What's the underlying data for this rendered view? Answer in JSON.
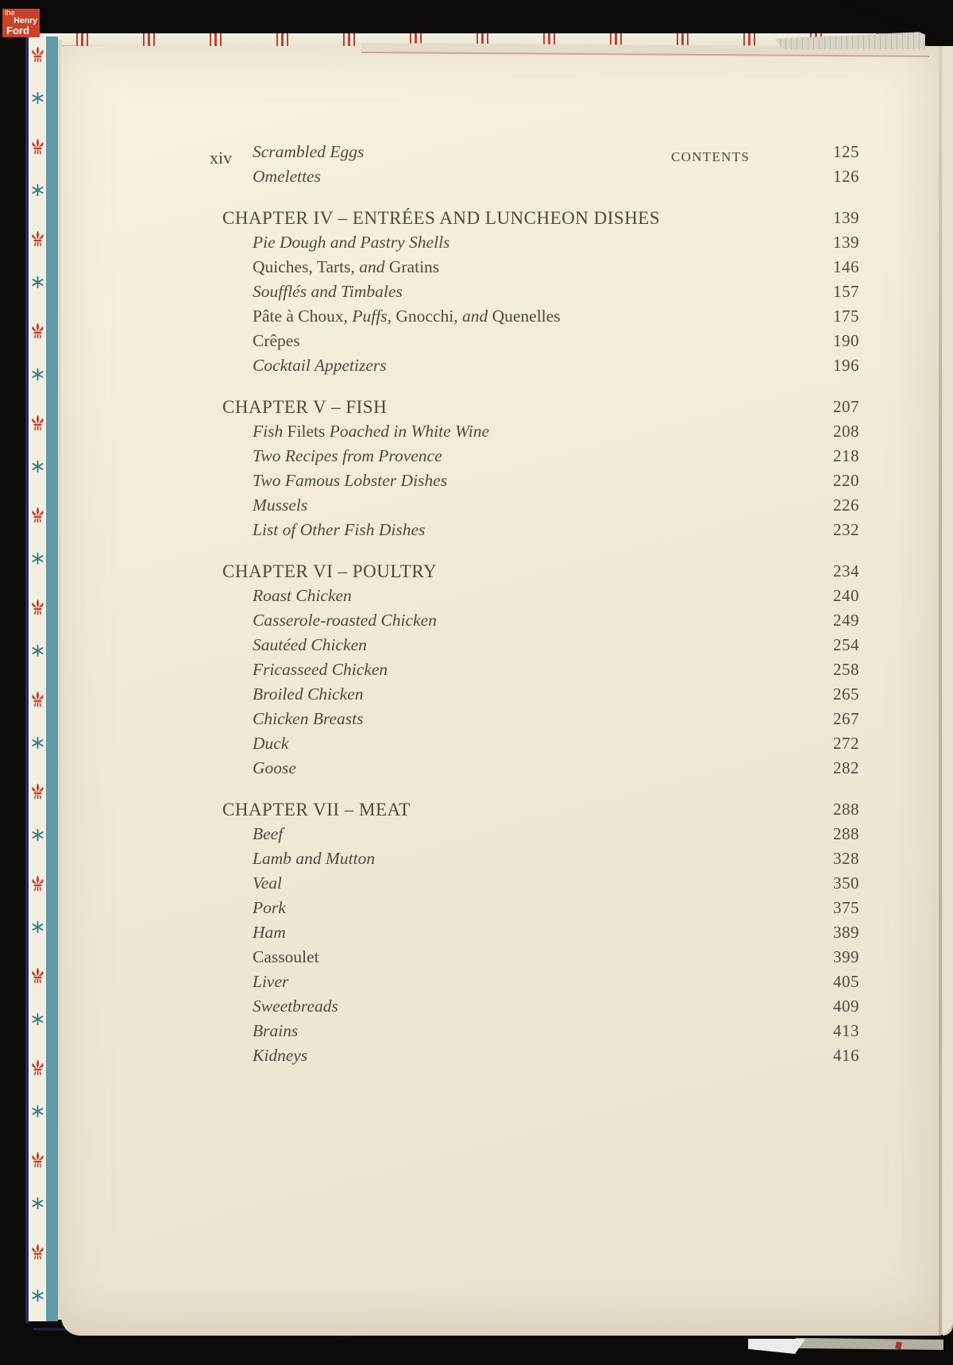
{
  "logo": {
    "the": "the",
    "henry": "Henry",
    "ford": "Ford"
  },
  "page": {
    "folio": "xiv",
    "running_head": "CONTENTS"
  },
  "toc": {
    "rows": [
      {
        "type": "item",
        "gap": false,
        "segments": [
          {
            "t": "Scrambled Eggs",
            "s": "i"
          }
        ],
        "page": "125"
      },
      {
        "type": "item",
        "gap": false,
        "segments": [
          {
            "t": "Omelettes",
            "s": "i"
          }
        ],
        "page": "126"
      },
      {
        "type": "chapter",
        "gap": true,
        "segments": [
          {
            "t": "CHAPTER IV – ENTRÉES AND LUNCHEON DISHES",
            "s": "r"
          }
        ],
        "page": "139"
      },
      {
        "type": "item",
        "gap": false,
        "segments": [
          {
            "t": "Pie Dough and Pastry Shells",
            "s": "i"
          }
        ],
        "page": "139"
      },
      {
        "type": "item",
        "gap": false,
        "segments": [
          {
            "t": "Quiches, Tarts, ",
            "s": "r"
          },
          {
            "t": "and",
            "s": "i"
          },
          {
            "t": " Gratins",
            "s": "r"
          }
        ],
        "page": "146"
      },
      {
        "type": "item",
        "gap": false,
        "segments": [
          {
            "t": "Soufflés and Timbales",
            "s": "i"
          }
        ],
        "page": "157"
      },
      {
        "type": "item",
        "gap": false,
        "segments": [
          {
            "t": "Pâte à Choux, ",
            "s": "r"
          },
          {
            "t": "Puffs,",
            "s": "i"
          },
          {
            "t": " Gnocchi, ",
            "s": "r"
          },
          {
            "t": "and",
            "s": "i"
          },
          {
            "t": " Quenelles",
            "s": "r"
          }
        ],
        "page": "175"
      },
      {
        "type": "item",
        "gap": false,
        "segments": [
          {
            "t": "Crêpes",
            "s": "r"
          }
        ],
        "page": "190"
      },
      {
        "type": "item",
        "gap": false,
        "segments": [
          {
            "t": "Cocktail Appetizers",
            "s": "i"
          }
        ],
        "page": "196"
      },
      {
        "type": "chapter",
        "gap": true,
        "segments": [
          {
            "t": "CHAPTER V – FISH",
            "s": "r"
          }
        ],
        "page": "207"
      },
      {
        "type": "item",
        "gap": false,
        "segments": [
          {
            "t": "Fish ",
            "s": "i"
          },
          {
            "t": "Filets ",
            "s": "r"
          },
          {
            "t": "Poached in White Wine",
            "s": "i"
          }
        ],
        "page": "208"
      },
      {
        "type": "item",
        "gap": false,
        "segments": [
          {
            "t": "Two Recipes from Provence",
            "s": "i"
          }
        ],
        "page": "218"
      },
      {
        "type": "item",
        "gap": false,
        "segments": [
          {
            "t": "Two Famous Lobster Dishes",
            "s": "i"
          }
        ],
        "page": "220"
      },
      {
        "type": "item",
        "gap": false,
        "segments": [
          {
            "t": "Mussels",
            "s": "i"
          }
        ],
        "page": "226"
      },
      {
        "type": "item",
        "gap": false,
        "segments": [
          {
            "t": "List of Other Fish Dishes",
            "s": "i"
          }
        ],
        "page": "232"
      },
      {
        "type": "chapter",
        "gap": true,
        "segments": [
          {
            "t": "CHAPTER VI – POULTRY",
            "s": "r"
          }
        ],
        "page": "234"
      },
      {
        "type": "item",
        "gap": false,
        "segments": [
          {
            "t": "Roast Chicken",
            "s": "i"
          }
        ],
        "page": "240"
      },
      {
        "type": "item",
        "gap": false,
        "segments": [
          {
            "t": "Casserole-roasted Chicken",
            "s": "i"
          }
        ],
        "page": "249"
      },
      {
        "type": "item",
        "gap": false,
        "segments": [
          {
            "t": "Sautéed Chicken",
            "s": "i"
          }
        ],
        "page": "254"
      },
      {
        "type": "item",
        "gap": false,
        "segments": [
          {
            "t": "Fricasseed Chicken",
            "s": "i"
          }
        ],
        "page": "258"
      },
      {
        "type": "item",
        "gap": false,
        "segments": [
          {
            "t": "Broiled Chicken",
            "s": "i"
          }
        ],
        "page": "265"
      },
      {
        "type": "item",
        "gap": false,
        "segments": [
          {
            "t": "Chicken Breasts",
            "s": "i"
          }
        ],
        "page": "267"
      },
      {
        "type": "item",
        "gap": false,
        "segments": [
          {
            "t": "Duck",
            "s": "i"
          }
        ],
        "page": "272"
      },
      {
        "type": "item",
        "gap": false,
        "segments": [
          {
            "t": "Goose",
            "s": "i"
          }
        ],
        "page": "282"
      },
      {
        "type": "chapter",
        "gap": true,
        "segments": [
          {
            "t": "CHAPTER VII – MEAT",
            "s": "r"
          }
        ],
        "page": "288"
      },
      {
        "type": "item",
        "gap": false,
        "segments": [
          {
            "t": "Beef",
            "s": "i"
          }
        ],
        "page": "288"
      },
      {
        "type": "item",
        "gap": false,
        "segments": [
          {
            "t": "Lamb and Mutton",
            "s": "i"
          }
        ],
        "page": "328"
      },
      {
        "type": "item",
        "gap": false,
        "segments": [
          {
            "t": "Veal",
            "s": "i"
          }
        ],
        "page": "350"
      },
      {
        "type": "item",
        "gap": false,
        "segments": [
          {
            "t": "Pork",
            "s": "i"
          }
        ],
        "page": "375"
      },
      {
        "type": "item",
        "gap": false,
        "segments": [
          {
            "t": "Ham",
            "s": "i"
          }
        ],
        "page": "389"
      },
      {
        "type": "item",
        "gap": false,
        "segments": [
          {
            "t": "Cassoulet",
            "s": "r"
          }
        ],
        "page": "399"
      },
      {
        "type": "item",
        "gap": false,
        "segments": [
          {
            "t": "Liver",
            "s": "i"
          }
        ],
        "page": "405"
      },
      {
        "type": "item",
        "gap": false,
        "segments": [
          {
            "t": "Sweetbreads",
            "s": "i"
          }
        ],
        "page": "409"
      },
      {
        "type": "item",
        "gap": false,
        "segments": [
          {
            "t": "Brains",
            "s": "i"
          }
        ],
        "page": "413"
      },
      {
        "type": "item",
        "gap": false,
        "segments": [
          {
            "t": "Kidneys",
            "s": "i"
          }
        ],
        "page": "416"
      }
    ]
  },
  "colors": {
    "background_black": "#0b0a08",
    "page_highlight": "#f7f1e0",
    "page_mid": "#f0e9d7",
    "page_shadow": "#e9e2cf",
    "ink": "#4a4a41",
    "teal_stripe": "#5e99a7",
    "endpaper_cream": "#f2eee1",
    "fleur_red": "#c0402f",
    "star_teal": "#35798f",
    "logo_red": "#c9432a",
    "navy_edge": "#2a2c5e",
    "pink_edge": "#cba79e"
  }
}
